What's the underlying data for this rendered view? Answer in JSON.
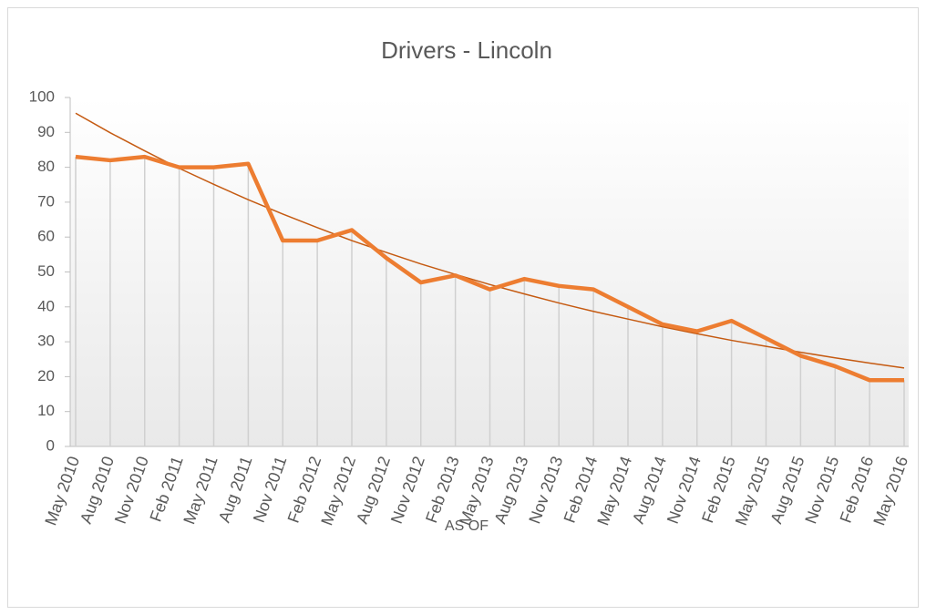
{
  "chart_data": {
    "type": "line",
    "title": "Drivers - Lincoln",
    "x_label": "AS OF",
    "categories": [
      "May 2010",
      "Aug 2010",
      "Nov 2010",
      "Feb 2011",
      "May 2011",
      "Aug 2011",
      "Nov 2011",
      "Feb 2012",
      "May 2012",
      "Aug 2012",
      "Nov 2012",
      "Feb 2013",
      "May 2013",
      "Aug 2013",
      "Nov 2013",
      "Feb 2014",
      "May 2014",
      "Aug 2014",
      "Nov 2014",
      "Feb 2015",
      "May 2015",
      "Aug 2015",
      "Nov 2015",
      "Feb 2016",
      "May 2016"
    ],
    "series": [
      {
        "color": "#ed7d31",
        "values": [
          83,
          82,
          83,
          80,
          80,
          81,
          59,
          59,
          62,
          54,
          47,
          49,
          45,
          48,
          46,
          45,
          40,
          35,
          33,
          36,
          31,
          26,
          23,
          19,
          19
        ]
      }
    ],
    "trendline": {
      "color": "#c55a11",
      "values": [
        95.5,
        89.9,
        84.7,
        79.7,
        75.1,
        70.7,
        66.6,
        62.7,
        59.0,
        55.6,
        52.3,
        49.3,
        46.4,
        43.7,
        41.1,
        38.7,
        36.5,
        34.3,
        32.3,
        30.4,
        28.7,
        27.0,
        25.4,
        23.9,
        22.5
      ]
    },
    "ylim": [
      0,
      100
    ],
    "yticks": [
      0,
      10,
      20,
      30,
      40,
      50,
      60,
      70,
      80,
      90,
      100
    ],
    "drop_lines": true
  }
}
